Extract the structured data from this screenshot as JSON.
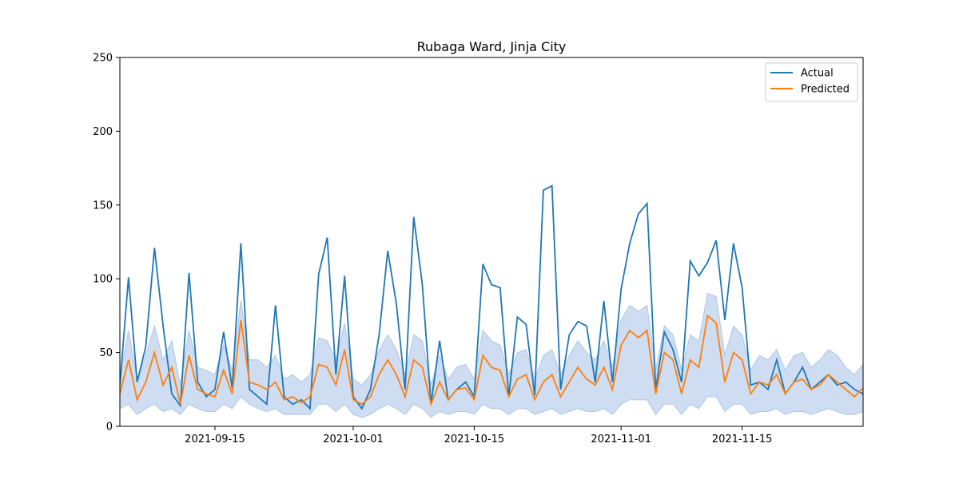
{
  "chart_data": {
    "type": "line",
    "title": "Rubaga Ward, Jinja City",
    "xlabel": "",
    "ylabel": "",
    "xlim": [
      "2021-09-04",
      "2021-11-29"
    ],
    "ylim": [
      0,
      250
    ],
    "yticks": [
      0,
      50,
      100,
      150,
      200,
      250
    ],
    "xticks": [
      "2021-09-15",
      "2021-10-01",
      "2021-10-15",
      "2021-11-01",
      "2021-11-15"
    ],
    "grid": false,
    "legend": {
      "placement": "top-right",
      "entries": [
        "Actual",
        "Predicted"
      ]
    },
    "colors": {
      "actual": "#1f77b4",
      "predicted": "#ff7f0e",
      "band": "#aec7e8"
    },
    "series": [
      {
        "name": "Actual",
        "x": [
          "2021-09-04",
          "2021-09-05",
          "2021-09-06",
          "2021-09-07",
          "2021-09-08",
          "2021-09-09",
          "2021-09-10",
          "2021-09-11",
          "2021-09-12",
          "2021-09-13",
          "2021-09-14",
          "2021-09-15",
          "2021-09-16",
          "2021-09-17",
          "2021-09-18",
          "2021-09-19",
          "2021-09-20",
          "2021-09-21",
          "2021-09-22",
          "2021-09-23",
          "2021-09-24",
          "2021-09-25",
          "2021-09-26",
          "2021-09-27",
          "2021-09-28",
          "2021-09-29",
          "2021-09-30",
          "2021-10-01",
          "2021-10-02",
          "2021-10-03",
          "2021-10-04",
          "2021-10-05",
          "2021-10-06",
          "2021-10-07",
          "2021-10-08",
          "2021-10-09",
          "2021-10-10",
          "2021-10-11",
          "2021-10-12",
          "2021-10-13",
          "2021-10-14",
          "2021-10-15",
          "2021-10-16",
          "2021-10-17",
          "2021-10-18",
          "2021-10-19",
          "2021-10-20",
          "2021-10-21",
          "2021-10-22",
          "2021-10-23",
          "2021-10-24",
          "2021-10-25",
          "2021-10-26",
          "2021-10-27",
          "2021-10-28",
          "2021-10-29",
          "2021-10-30",
          "2021-10-31",
          "2021-11-01",
          "2021-11-02",
          "2021-11-03",
          "2021-11-04",
          "2021-11-05",
          "2021-11-06",
          "2021-11-07",
          "2021-11-08",
          "2021-11-09",
          "2021-11-10",
          "2021-11-11",
          "2021-11-12",
          "2021-11-13",
          "2021-11-14",
          "2021-11-15",
          "2021-11-16",
          "2021-11-17",
          "2021-11-18",
          "2021-11-19",
          "2021-11-20",
          "2021-11-21",
          "2021-11-22",
          "2021-11-23",
          "2021-11-24",
          "2021-11-25",
          "2021-11-26",
          "2021-11-27",
          "2021-11-28",
          "2021-11-29"
        ],
        "values": [
          28,
          101,
          30,
          54,
          121,
          68,
          22,
          14,
          104,
          30,
          20,
          25,
          64,
          26,
          124,
          25,
          20,
          15,
          82,
          20,
          15,
          18,
          12,
          103,
          128,
          35,
          102,
          20,
          12,
          25,
          62,
          119,
          83,
          25,
          142,
          96,
          15,
          58,
          18,
          25,
          30,
          20,
          110,
          96,
          94,
          20,
          74,
          69,
          21,
          160,
          163,
          25,
          62,
          71,
          68,
          30,
          85,
          30,
          93,
          124,
          144,
          151,
          25,
          64,
          52,
          30,
          112,
          102,
          111,
          126,
          72,
          124,
          94,
          28,
          30,
          25,
          45,
          22,
          30,
          40,
          25,
          30,
          35,
          28,
          30,
          25,
          22
        ]
      },
      {
        "name": "Predicted",
        "x": [
          "2021-09-04",
          "2021-09-05",
          "2021-09-06",
          "2021-09-07",
          "2021-09-08",
          "2021-09-09",
          "2021-09-10",
          "2021-09-11",
          "2021-09-12",
          "2021-09-13",
          "2021-09-14",
          "2021-09-15",
          "2021-09-16",
          "2021-09-17",
          "2021-09-18",
          "2021-09-19",
          "2021-09-20",
          "2021-09-21",
          "2021-09-22",
          "2021-09-23",
          "2021-09-24",
          "2021-09-25",
          "2021-09-26",
          "2021-09-27",
          "2021-09-28",
          "2021-09-29",
          "2021-09-30",
          "2021-10-01",
          "2021-10-02",
          "2021-10-03",
          "2021-10-04",
          "2021-10-05",
          "2021-10-06",
          "2021-10-07",
          "2021-10-08",
          "2021-10-09",
          "2021-10-10",
          "2021-10-11",
          "2021-10-12",
          "2021-10-13",
          "2021-10-14",
          "2021-10-15",
          "2021-10-16",
          "2021-10-17",
          "2021-10-18",
          "2021-10-19",
          "2021-10-20",
          "2021-10-21",
          "2021-10-22",
          "2021-10-23",
          "2021-10-24",
          "2021-10-25",
          "2021-10-26",
          "2021-10-27",
          "2021-10-28",
          "2021-10-29",
          "2021-10-30",
          "2021-10-31",
          "2021-11-01",
          "2021-11-02",
          "2021-11-03",
          "2021-11-04",
          "2021-11-05",
          "2021-11-06",
          "2021-11-07",
          "2021-11-08",
          "2021-11-09",
          "2021-11-10",
          "2021-11-11",
          "2021-11-12",
          "2021-11-13",
          "2021-11-14",
          "2021-11-15",
          "2021-11-16",
          "2021-11-17",
          "2021-11-18",
          "2021-11-19",
          "2021-11-20",
          "2021-11-21",
          "2021-11-22",
          "2021-11-23",
          "2021-11-24",
          "2021-11-25",
          "2021-11-26",
          "2021-11-27",
          "2021-11-28",
          "2021-11-29"
        ],
        "values": [
          22,
          45,
          18,
          30,
          50,
          28,
          40,
          15,
          48,
          25,
          22,
          20,
          38,
          22,
          72,
          30,
          28,
          25,
          30,
          18,
          20,
          16,
          20,
          42,
          40,
          28,
          52,
          18,
          15,
          20,
          35,
          45,
          35,
          20,
          45,
          40,
          15,
          30,
          18,
          25,
          26,
          18,
          48,
          40,
          38,
          20,
          32,
          35,
          18,
          30,
          35,
          20,
          30,
          40,
          32,
          28,
          40,
          25,
          55,
          65,
          60,
          65,
          22,
          50,
          45,
          22,
          45,
          40,
          75,
          70,
          30,
          50,
          45,
          22,
          30,
          28,
          35,
          22,
          30,
          32,
          25,
          28,
          35,
          30,
          25,
          20,
          26
        ],
        "lower": [
          12,
          15,
          8,
          12,
          15,
          10,
          12,
          8,
          15,
          12,
          10,
          10,
          15,
          12,
          20,
          15,
          12,
          10,
          12,
          8,
          8,
          8,
          8,
          15,
          15,
          10,
          15,
          8,
          6,
          8,
          12,
          15,
          12,
          8,
          15,
          12,
          6,
          10,
          8,
          10,
          10,
          8,
          15,
          12,
          12,
          8,
          12,
          12,
          8,
          10,
          12,
          8,
          10,
          12,
          10,
          10,
          12,
          8,
          15,
          18,
          18,
          18,
          8,
          15,
          15,
          8,
          15,
          12,
          20,
          20,
          10,
          15,
          15,
          8,
          10,
          10,
          12,
          8,
          10,
          10,
          8,
          10,
          12,
          10,
          8,
          8,
          10
        ],
        "upper": [
          35,
          65,
          32,
          48,
          68,
          45,
          58,
          28,
          65,
          40,
          38,
          35,
          55,
          38,
          85,
          45,
          45,
          40,
          48,
          32,
          35,
          30,
          35,
          60,
          58,
          45,
          70,
          32,
          28,
          35,
          52,
          62,
          52,
          35,
          62,
          58,
          28,
          48,
          32,
          40,
          42,
          32,
          65,
          58,
          55,
          35,
          50,
          52,
          32,
          48,
          52,
          35,
          48,
          58,
          50,
          45,
          58,
          40,
          72,
          82,
          78,
          82,
          38,
          68,
          62,
          38,
          62,
          58,
          90,
          88,
          48,
          68,
          62,
          38,
          48,
          45,
          52,
          38,
          48,
          50,
          40,
          45,
          52,
          48,
          40,
          35,
          42
        ]
      }
    ]
  }
}
